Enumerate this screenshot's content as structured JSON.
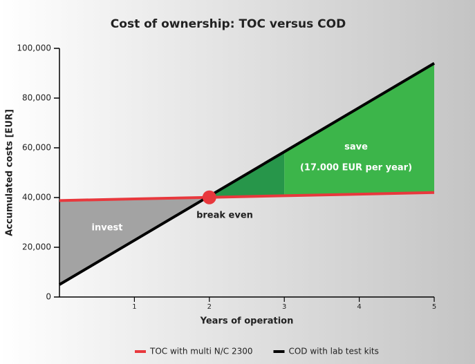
{
  "chart_data": {
    "type": "line",
    "title": "Cost of ownership: TOC versus COD",
    "x_label": "Years of operation",
    "y_label": "Accumulated costs [EUR]",
    "x": [
      0,
      1,
      2,
      3,
      4,
      5
    ],
    "series": [
      {
        "name": "TOC with multi N/C 2300",
        "color": "#e8383d",
        "values": [
          38800,
          39440,
          40080,
          40720,
          41360,
          42000
        ]
      },
      {
        "name": "COD with lab test kits",
        "color": "#000000",
        "values": [
          5000,
          22800,
          40600,
          58400,
          76200,
          94000
        ]
      }
    ],
    "areas": [
      {
        "label": "invest",
        "from": 0,
        "to": 2,
        "color": "#a3a3a3"
      },
      {
        "from": 2,
        "to": 3,
        "color": "#27964a"
      },
      {
        "label": "save",
        "sublabel": "(17.000 EUR per year)",
        "from": 3,
        "to": 5,
        "color": "#3cb54a"
      }
    ],
    "annotation": "break even",
    "xlim": [
      0,
      5
    ],
    "ylim": [
      0,
      100000
    ],
    "xticks": [
      1,
      2,
      3,
      4,
      5
    ],
    "yticks": [
      0,
      {
        "value": 20000,
        "label": "20,000"
      },
      {
        "value": 40000,
        "label": "40,000"
      },
      {
        "value": 60000,
        "label": "60,000"
      },
      {
        "value": 80000,
        "label": "80,000"
      },
      {
        "value": 100000,
        "label": "100,000"
      }
    ],
    "legend": "bottom"
  }
}
